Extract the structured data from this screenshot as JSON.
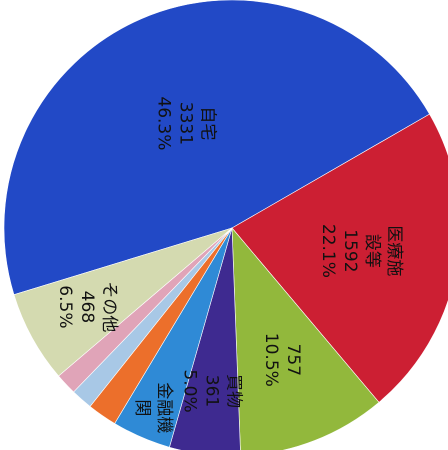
{
  "chart_data": {
    "type": "pie",
    "title": "",
    "start_angle_deg": 163,
    "direction": "clockwise",
    "slices": [
      {
        "name": "自宅",
        "value": 3331,
        "percent": "46.3%",
        "label_lines": [
          "自宅",
          "3331",
          "46.3%"
        ],
        "color": "#2249c6"
      },
      {
        "name": "医療施設等",
        "value": 1592,
        "percent": "22.1%",
        "label_lines": [
          "医療施",
          "設等",
          "1592",
          "22.1%"
        ],
        "color": "#cc1f33"
      },
      {
        "name": "",
        "value": 757,
        "percent": "10.5%",
        "label_lines": [
          "757",
          "10.5%"
        ],
        "color": "#92b83c"
      },
      {
        "name": "買物",
        "value": 361,
        "percent": "5.0%",
        "label_lines": [
          "買物",
          "361",
          "5.0%"
        ],
        "color": "#3e2a90"
      },
      {
        "name": "金融機関",
        "value": 300,
        "percent": "",
        "label_lines": [
          "金融機",
          "関"
        ],
        "color": "#2f8ad6"
      },
      {
        "name": "",
        "value": 150,
        "percent": "",
        "label_lines": [],
        "color": "#ec6f2b"
      },
      {
        "name": "",
        "value": 110,
        "percent": "",
        "label_lines": [],
        "color": "#a8c8e6"
      },
      {
        "name": "",
        "value": 110,
        "percent": "",
        "label_lines": [],
        "color": "#e0a4b8"
      },
      {
        "name": "その他",
        "value": 468,
        "percent": "6.5%",
        "label_lines": [
          "その他",
          "468",
          "6.5%"
        ],
        "color": "#d4dab0"
      }
    ]
  }
}
